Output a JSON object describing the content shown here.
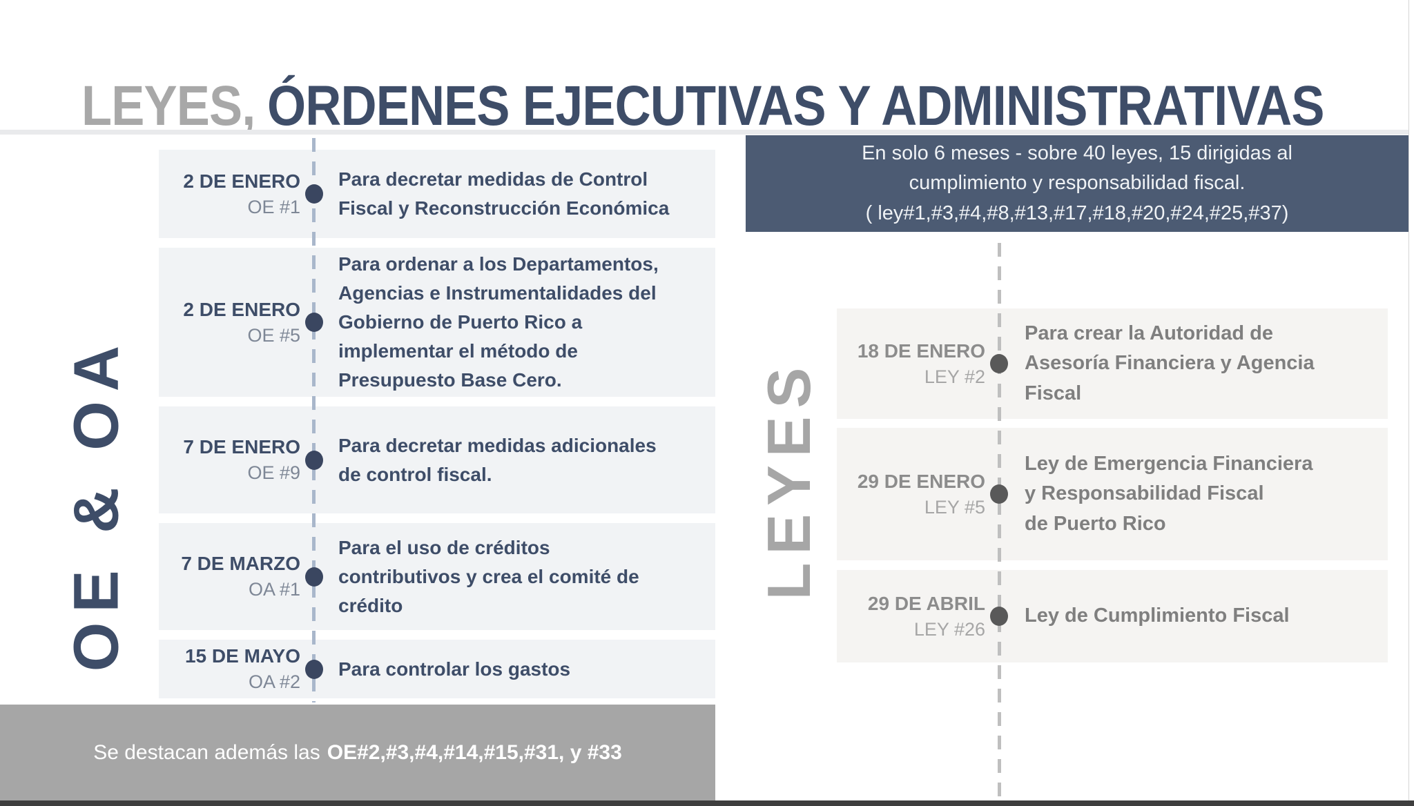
{
  "title": {
    "gray": "LEYES,",
    "navy": "ÓRDENES EJECUTIVAS Y ADMINISTRATIVAS"
  },
  "left_timeline": {
    "section_label": "OE & OA",
    "entries": [
      {
        "date": "2 DE ENERO",
        "ref": "OE #1",
        "text": "Para decretar medidas de Control\nFiscal y Reconstrucción Económica"
      },
      {
        "date": "2 DE ENERO",
        "ref": "OE #5",
        "text": "Para ordenar a los Departamentos,\nAgencias e Instrumentalidades del\nGobierno de Puerto Rico a\nimplementar el método de\nPresupuesto Base Cero."
      },
      {
        "date": "7 DE ENERO",
        "ref": "OE #9",
        "text": "Para decretar medidas adicionales\nde control fiscal."
      },
      {
        "date": "7 DE MARZO",
        "ref": "OA #1",
        "text": "Para el uso de créditos\ncontributivos y crea el comité de\ncrédito"
      },
      {
        "date": "15 DE MAYO",
        "ref": "OA #2",
        "text": "Para controlar los gastos"
      }
    ],
    "footnote": {
      "prefix": "Se destacan además las",
      "bold": "OE#2,#3,#4,#14,#15,#31, y #33"
    }
  },
  "right_timeline": {
    "section_label": "LEYES",
    "header_lines": [
      "En solo 6 meses - sobre 40 leyes, 15 dirigidas al",
      "cumplimiento y responsabilidad fiscal.",
      "( ley#1,#3,#4,#8,#13,#17,#18,#20,#24,#25,#37)"
    ],
    "entries": [
      {
        "date": "18 DE ENERO",
        "ref": "LEY #2",
        "text": "Para crear la Autoridad de\nAsesoría Financiera y Agencia\nFiscal"
      },
      {
        "date": "29 DE ENERO",
        "ref": "LEY #5",
        "text": "Ley de Emergencia Financiera\ny Responsabilidad Fiscal\nde Puerto Rico"
      },
      {
        "date": "29 DE ABRIL",
        "ref": "LEY #26",
        "text": "Ley de Cumplimiento Fiscal"
      }
    ]
  },
  "colors": {
    "navy": "#3E4D68",
    "titleGray": "#A8A8A8",
    "hairline": "#E9EAEC",
    "headerBox": "#4C5B73",
    "headerText": "#EFF2F5",
    "leftRowBg": "#F1F3F5",
    "rightRowBg": "#F5F4F2",
    "leftDate": "#3E4D68",
    "leftRef": "#7E8796",
    "leftDesc": "#3E4D68",
    "leftDot": "#3A4660",
    "leftDash": "#A9B7CB",
    "rightDate": "#8C8C8C",
    "rightRef": "#A6A6A6",
    "rightDesc": "#7F7F7F",
    "rightDot": "#595959",
    "rightDash": "#BFBFBF",
    "banner": "#A6A6A6",
    "bannerText": "#FFFFFF",
    "bottomStrip": "#3E3E3E"
  }
}
